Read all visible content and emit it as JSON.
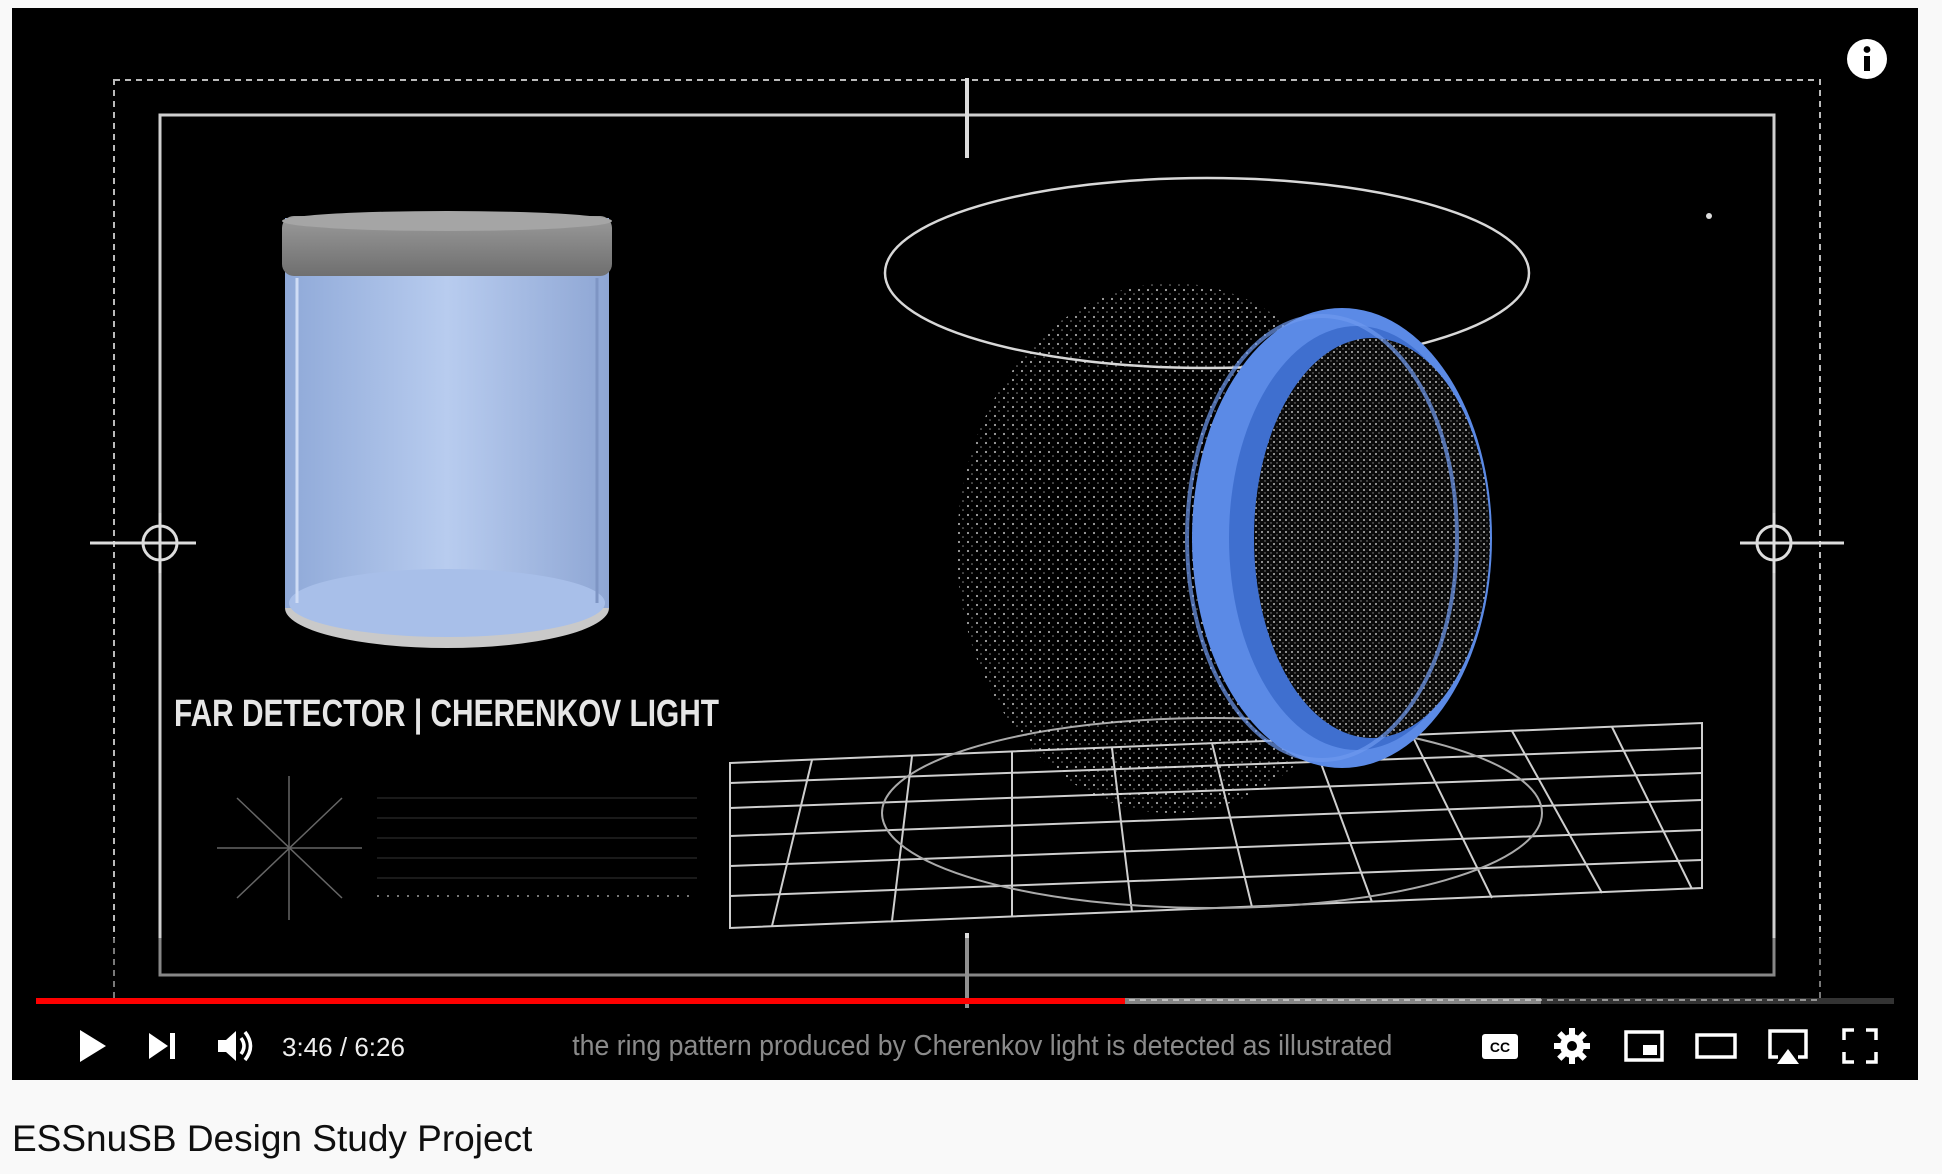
{
  "player": {
    "overlay_title": "FAR DETECTOR  | CHERENKOV LIGHT",
    "caption": "the ring pattern produced by Cherenkov light is detected as illustrated",
    "time": {
      "current": "3:46",
      "separator": "/",
      "duration": "6:26"
    },
    "progress": {
      "played_fraction": 0.586,
      "loaded_fraction": 0.81
    },
    "icons": {
      "info": "info-icon",
      "play": "play-icon",
      "next": "next-icon",
      "volume": "volume-icon",
      "captions": "cc-icon",
      "settings": "gear-icon",
      "miniplayer": "miniplayer-icon",
      "theater": "theater-icon",
      "airplay": "airplay-icon",
      "fullscreen": "fullscreen-icon"
    },
    "colors": {
      "progress_played": "#ff0000",
      "detector_blue": "#5b8ae6"
    }
  },
  "video": {
    "title": "ESSnuSB Design Study Project"
  }
}
